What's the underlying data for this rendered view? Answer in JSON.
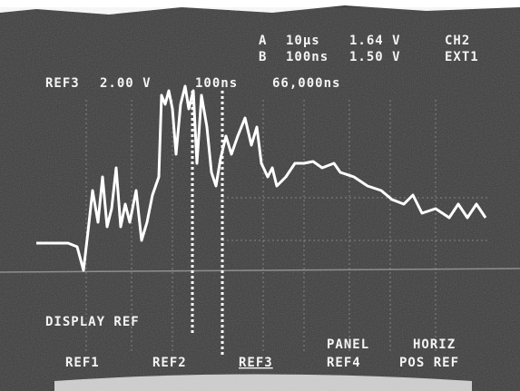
{
  "readout": {
    "line_a": [
      "A",
      "10µs",
      "1.64 V",
      "CH2"
    ],
    "line_b": [
      "B",
      "100ns",
      "1.50 V",
      "EXT1"
    ],
    "line_ref": [
      "REF3",
      "2.00 V",
      "100ns",
      "66,000ns"
    ]
  },
  "menu": {
    "title": "DISPLAY REF",
    "buttons": [
      [
        "REF1"
      ],
      [
        "REF2"
      ],
      [
        "REF3"
      ],
      [
        "PANEL",
        "REF4"
      ],
      [
        "HORIZ",
        "POS REF"
      ]
    ]
  }
}
